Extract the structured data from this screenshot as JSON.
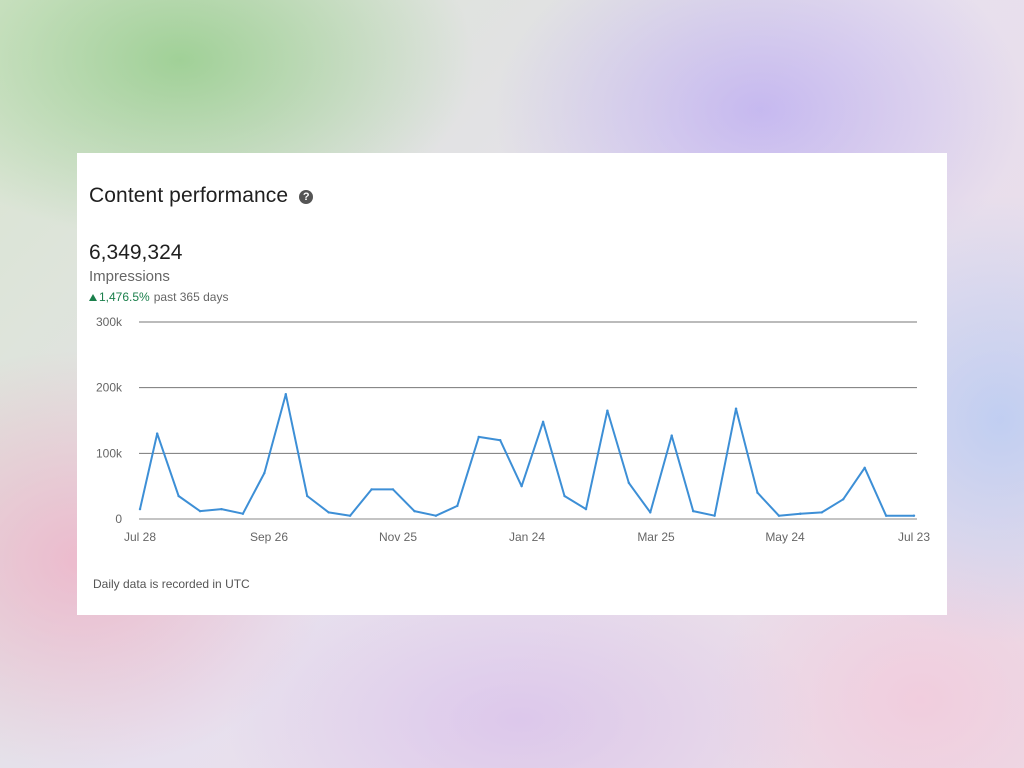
{
  "card": {
    "title": "Content performance",
    "help_icon": "question-circle-icon",
    "metric_value": "6,349,324",
    "metric_label": "Impressions",
    "change_value": "1,476.5%",
    "change_period": "past 365 days",
    "change_icon": "triangle-up-icon",
    "footnote": "Daily data is recorded in UTC"
  },
  "colors": {
    "line": "#3d8fd6",
    "positive": "#1a7f4b"
  },
  "chart_data": {
    "type": "line",
    "title": "",
    "xlabel": "",
    "ylabel": "",
    "x": [
      "2023-07-28",
      "2023-08-05",
      "2023-08-15",
      "2023-08-25",
      "2023-09-04",
      "2023-09-14",
      "2023-09-24",
      "2023-10-04",
      "2023-10-14",
      "2023-10-24",
      "2023-11-03",
      "2023-11-13",
      "2023-11-23",
      "2023-12-03",
      "2023-12-13",
      "2023-12-23",
      "2024-01-02",
      "2024-01-12",
      "2024-01-22",
      "2024-02-01",
      "2024-02-11",
      "2024-02-21",
      "2024-03-02",
      "2024-03-12",
      "2024-03-22",
      "2024-04-01",
      "2024-04-11",
      "2024-04-21",
      "2024-05-01",
      "2024-05-11",
      "2024-05-21",
      "2024-05-31",
      "2024-06-10",
      "2024-06-20",
      "2024-06-30",
      "2024-07-10",
      "2024-07-23"
    ],
    "x_ticks": [
      "Jul 28",
      "Sep 26",
      "Nov 25",
      "Jan 24",
      "Mar 25",
      "May 24",
      "Jul 23"
    ],
    "y_ticks": [
      "0",
      "100k",
      "200k",
      "300k"
    ],
    "ylim": [
      0,
      300000
    ],
    "grid": true,
    "series": [
      {
        "values": [
          15000,
          130000,
          35000,
          12000,
          15000,
          8000,
          70000,
          190000,
          35000,
          10000,
          5000,
          45000,
          45000,
          12000,
          5000,
          20000,
          125000,
          120000,
          50000,
          148000,
          35000,
          15000,
          165000,
          55000,
          10000,
          127000,
          12000,
          5000,
          168000,
          40000,
          5000,
          8000,
          10000,
          30000,
          78000,
          5000,
          5000
        ]
      }
    ]
  }
}
